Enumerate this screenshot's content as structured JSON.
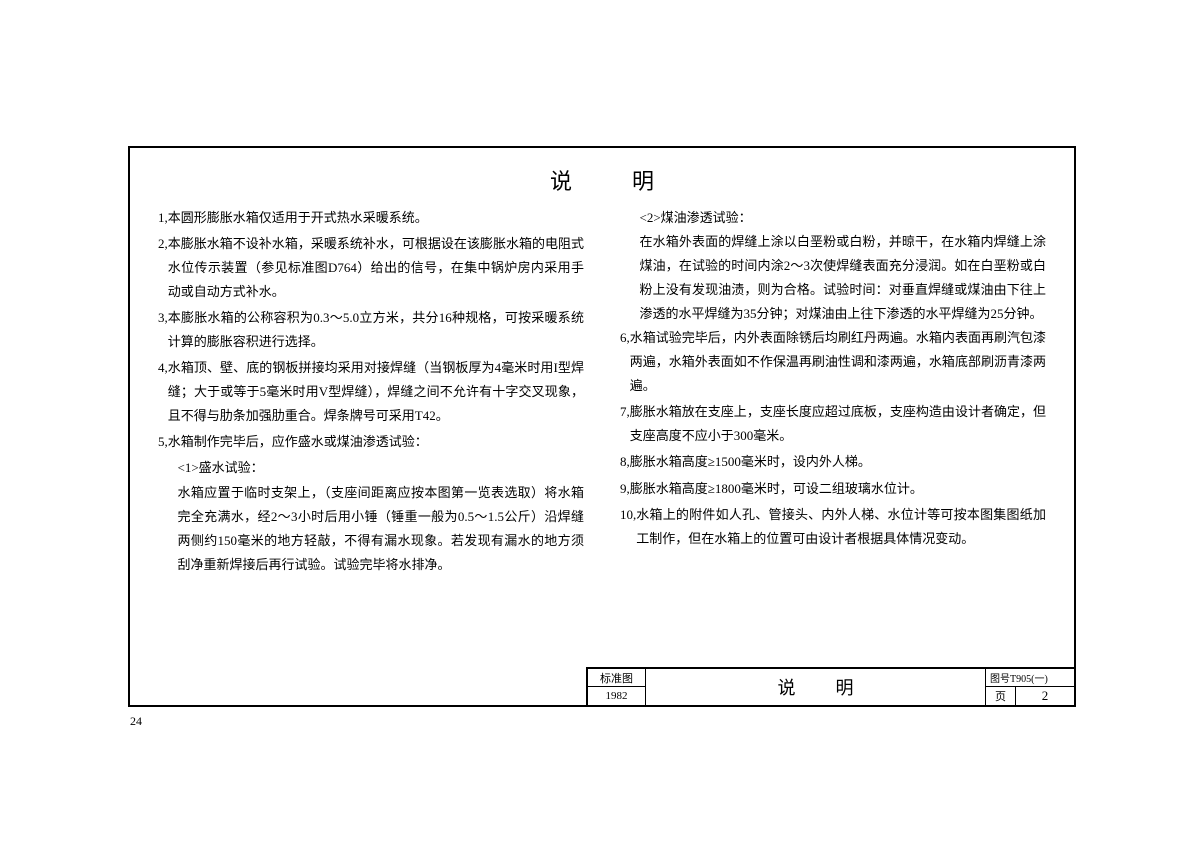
{
  "title": "说明",
  "pageNumber": "24",
  "left": {
    "items": [
      {
        "n": "1,",
        "t": "本圆形膨胀水箱仅适用于开式热水采暖系统。"
      },
      {
        "n": "2,",
        "t": "本膨胀水箱不设补水箱，采暖系统补水，可根据设在该膨胀水箱的电阻式水位传示装置（参见标准图D764）给出的信号，在集中锅炉房内采用手动或自动方式补水。"
      },
      {
        "n": "3,",
        "t": "本膨胀水箱的公称容积为0.3～5.0立方米，共分16种规格，可按采暖系统计算的膨胀容积进行选择。"
      },
      {
        "n": "4,",
        "t": "水箱顶、壁、底的钢板拼接均采用对接焊缝（当钢板厚为4毫米时用I型焊缝；大于或等于5毫米时用V型焊缝），焊缝之间不允许有十字交叉现象，且不得与肋条加强肋重合。焊条牌号可采用T42。"
      },
      {
        "n": "5,",
        "t": "水箱制作完毕后，应作盛水或煤油渗透试验："
      }
    ],
    "sub": [
      "<1>盛水试验：",
      "水箱应置于临时支架上，（支座间距离应按本图第一览表选取）将水箱完全充满水，经2～3小时后用小锤（锤重一般为0.5～1.5公斤）沿焊缝两侧约150毫米的地方轻敲，不得有漏水现象。若发现有漏水的地方须刮净重新焊接后再行试验。试验完毕将水排净。"
    ]
  },
  "right": {
    "sub": [
      "<2>煤油渗透试验：",
      "在水箱外表面的焊缝上涂以白垩粉或白粉，并晾干，在水箱内焊缝上涂煤油，在试验的时间内涂2～3次使焊缝表面充分浸润。如在白垩粉或白粉上没有发现油渍，则为合格。试验时间：对垂直焊缝或煤油由下往上渗透的水平焊缝为35分钟；对煤油由上往下渗透的水平焊缝为25分钟。"
    ],
    "items": [
      {
        "n": "6,",
        "t": "水箱试验完毕后，内外表面除锈后均刷红丹两遍。水箱内表面再刷汽包漆两遍，水箱外表面如不作保温再刷油性调和漆两遍，水箱底部刷沥青漆两遍。"
      },
      {
        "n": "7,",
        "t": "膨胀水箱放在支座上，支座长度应超过底板，支座构造由设计者确定，但支座高度不应小于300毫米。"
      },
      {
        "n": "8,",
        "t": "膨胀水箱高度≥1500毫米时，设内外人梯。"
      },
      {
        "n": "9,",
        "t": "膨胀水箱高度≥1800毫米时，可设二组玻璃水位计。"
      },
      {
        "n": "10,",
        "t": "水箱上的附件如人孔、管接头、内外人梯、水位计等可按本图集图纸加工制作，但在水箱上的位置可由设计者根据具体情况变动。"
      }
    ]
  },
  "footer": {
    "cell1top": "标准图",
    "cell1bot": "1982",
    "cell2": "说明",
    "cell3top": "图号T905(一)",
    "cell3a": "页",
    "cell3b": "2"
  }
}
